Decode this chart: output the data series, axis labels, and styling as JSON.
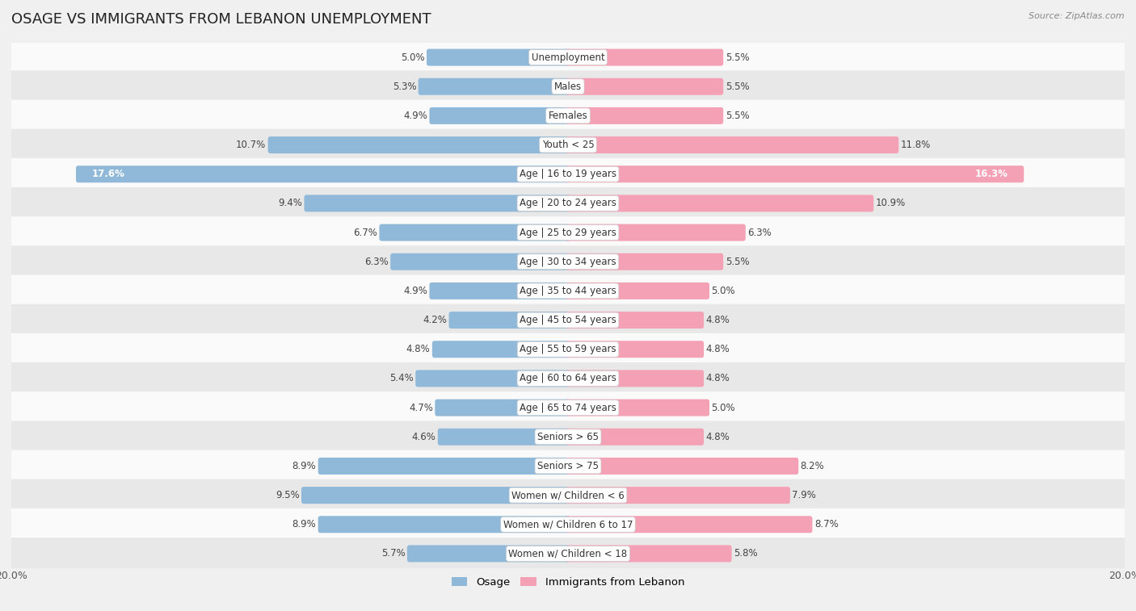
{
  "title": "OSAGE VS IMMIGRANTS FROM LEBANON UNEMPLOYMENT",
  "source": "Source: ZipAtlas.com",
  "categories": [
    "Unemployment",
    "Males",
    "Females",
    "Youth < 25",
    "Age | 16 to 19 years",
    "Age | 20 to 24 years",
    "Age | 25 to 29 years",
    "Age | 30 to 34 years",
    "Age | 35 to 44 years",
    "Age | 45 to 54 years",
    "Age | 55 to 59 years",
    "Age | 60 to 64 years",
    "Age | 65 to 74 years",
    "Seniors > 65",
    "Seniors > 75",
    "Women w/ Children < 6",
    "Women w/ Children 6 to 17",
    "Women w/ Children < 18"
  ],
  "osage_values": [
    5.0,
    5.3,
    4.9,
    10.7,
    17.6,
    9.4,
    6.7,
    6.3,
    4.9,
    4.2,
    4.8,
    5.4,
    4.7,
    4.6,
    8.9,
    9.5,
    8.9,
    5.7
  ],
  "lebanon_values": [
    5.5,
    5.5,
    5.5,
    11.8,
    16.3,
    10.9,
    6.3,
    5.5,
    5.0,
    4.8,
    4.8,
    4.8,
    5.0,
    4.8,
    8.2,
    7.9,
    8.7,
    5.8
  ],
  "osage_color": "#90b8d8",
  "lebanon_color": "#f4a0b5",
  "osage_label": "Osage",
  "lebanon_label": "Immigrants from Lebanon",
  "x_max": 20.0,
  "background_color": "#f0f0f0",
  "row_bg_light": "#fafafa",
  "row_bg_dark": "#e8e8e8",
  "title_fontsize": 13,
  "label_fontsize": 8.5,
  "value_fontsize": 8.5
}
